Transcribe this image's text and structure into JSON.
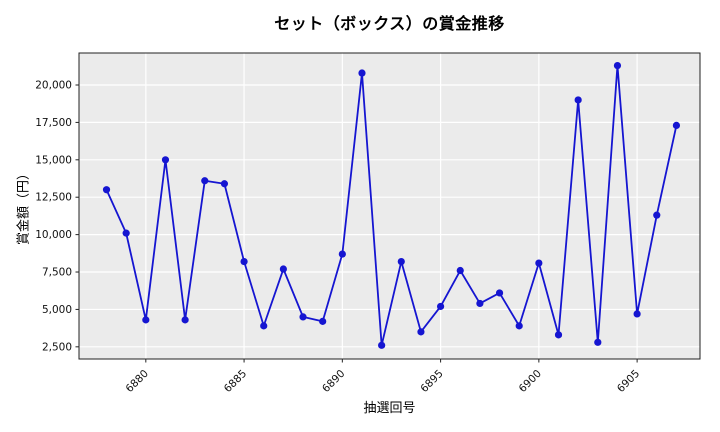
{
  "title": "セット（ボックス）の賞金推移",
  "chart_data": {
    "type": "line",
    "title": "セット（ボックス）の賞金推移",
    "xlabel": "抽選回号",
    "ylabel": "賞金額（円）",
    "x": [
      6878,
      6879,
      6880,
      6881,
      6882,
      6883,
      6884,
      6885,
      6886,
      6887,
      6888,
      6889,
      6890,
      6891,
      6892,
      6893,
      6894,
      6895,
      6896,
      6897,
      6898,
      6899,
      6900,
      6901,
      6902,
      6903,
      6904,
      6905,
      6906,
      6907
    ],
    "values": [
      13000,
      10100,
      4300,
      15000,
      4300,
      13600,
      13400,
      8200,
      3900,
      7700,
      4500,
      4200,
      8700,
      20800,
      2600,
      8200,
      3500,
      5200,
      7600,
      5400,
      6100,
      3900,
      8100,
      3300,
      19000,
      2800,
      21300,
      4700,
      11300,
      17300
    ],
    "xticks": [
      6880,
      6885,
      6890,
      6895,
      6900,
      6905
    ],
    "yticks": [
      2500,
      5000,
      7500,
      10000,
      12500,
      15000,
      17500,
      20000
    ],
    "xlim": [
      6876.6,
      6908.2
    ],
    "ylim": [
      1686,
      22139
    ],
    "grid": true,
    "legend": false,
    "line_color": "#1515d1",
    "marker": "circle",
    "marker_color": "#1515d1",
    "plot_bg": "#ebebeb",
    "grid_color": "#ffffff",
    "spine_color": "#222222"
  }
}
